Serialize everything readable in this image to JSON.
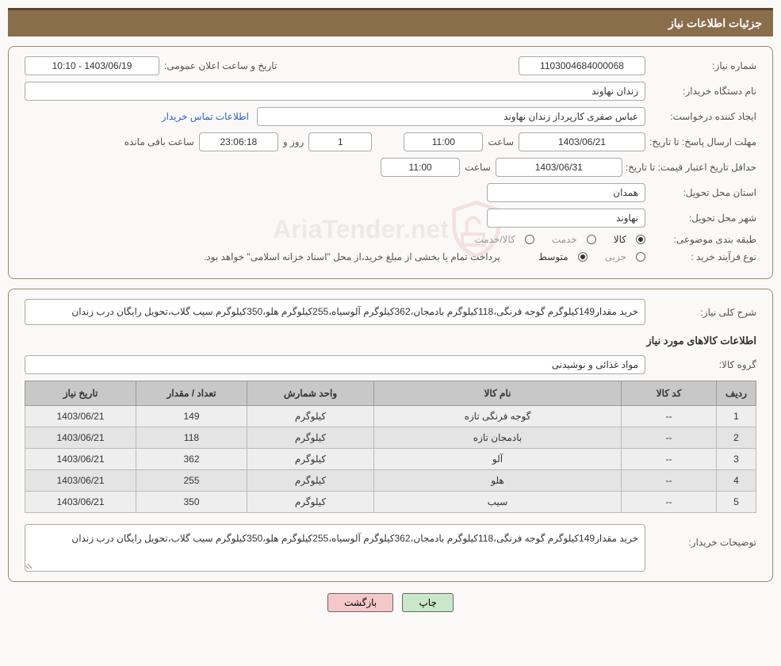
{
  "header": {
    "title": "جزئیات اطلاعات نیاز"
  },
  "fields": {
    "need_number_label": "شماره نیاز:",
    "need_number": "1103004684000068",
    "buyer_org_label": "نام دستگاه خریدار:",
    "buyer_org": "زندان نهاوند",
    "requester_label": "ایجاد کننده درخواست:",
    "requester": "عباس صفری کارپرداز زندان نهاوند",
    "contact_link": "اطلاعات تماس خریدار",
    "announce_label": "تاریخ و ساعت اعلان عمومی:",
    "announce_value": "1403/06/19 - 10:10",
    "deadline_label": "مهلت ارسال پاسخ: تا تاریخ:",
    "deadline_date": "1403/06/21",
    "time_label": "ساعت",
    "deadline_time": "11:00",
    "days_label": "روز و",
    "days_value": "1",
    "remain_time": "23:06:18",
    "remain_label": "ساعت باقی مانده",
    "validity_label": "حداقل تاریخ اعتبار قیمت: تا تاریخ:",
    "validity_date": "1403/06/31",
    "validity_time": "11:00",
    "province_label": "استان محل تحویل:",
    "province": "همدان",
    "city_label": "شهر محل تحویل:",
    "city": "نهاوند",
    "category_label": "طبقه بندی موضوعی:",
    "cat_goods": "کالا",
    "cat_service": "خدمت",
    "cat_both": "کالا/خدمت",
    "purchase_type_label": "نوع فرآیند خرید :",
    "pt_minor": "جزیی",
    "pt_medium": "متوسط",
    "payment_note": "پرداخت تمام یا بخشی از مبلغ خرید،از محل \"اسناد خزانه اسلامی\" خواهد بود."
  },
  "overview": {
    "desc_label": "شرح کلی نیاز:",
    "desc": "خرید مقدار149کیلوگرم گوجه فرنگی،118کیلوگرم بادمجان،362کیلوگرم آلوسیاه،255کیلوگرم هلو،350کیلوگرم سیب گلاب،تحویل رایگان درب زندان",
    "items_title": "اطلاعات کالاهای مورد نیاز",
    "group_label": "گروه کالا:",
    "group": "مواد غذائی و نوشیدنی"
  },
  "table": {
    "headers": {
      "idx": "ردیف",
      "code": "کد کالا",
      "name": "نام کالا",
      "unit": "واحد شمارش",
      "qty": "تعداد / مقدار",
      "date": "تاریخ نیاز"
    },
    "rows": [
      {
        "idx": "1",
        "code": "--",
        "name": "گوجه فرنگی تازه",
        "unit": "کیلوگرم",
        "qty": "149",
        "date": "1403/06/21"
      },
      {
        "idx": "2",
        "code": "--",
        "name": "بادمجان تازه",
        "unit": "کیلوگرم",
        "qty": "118",
        "date": "1403/06/21"
      },
      {
        "idx": "3",
        "code": "--",
        "name": "آلو",
        "unit": "کیلوگرم",
        "qty": "362",
        "date": "1403/06/21"
      },
      {
        "idx": "4",
        "code": "--",
        "name": "هلو",
        "unit": "کیلوگرم",
        "qty": "255",
        "date": "1403/06/21"
      },
      {
        "idx": "5",
        "code": "--",
        "name": "سیب",
        "unit": "کیلوگرم",
        "qty": "350",
        "date": "1403/06/21"
      }
    ]
  },
  "notes": {
    "label": "توضیحات خریدار:",
    "text": "خرید مقدار149کیلوگرم گوجه فرنگی،118کیلوگرم بادمجان،362کیلوگرم آلوسیاه،255کیلوگرم هلو،350کیلوگرم سیب گلاب،تحویل رایگان درب زندان"
  },
  "buttons": {
    "print": "چاپ",
    "back": "بازگشت"
  },
  "watermark": {
    "text": "AriaTender.net"
  },
  "colors": {
    "header_bg": "#8a6d4b",
    "panel_border": "#9b8a6f",
    "table_header_bg": "#c8c8c8",
    "table_row_bg": "#eeeeee",
    "btn_print_bg": "#c8e8c8",
    "btn_back_bg": "#f4c8c8",
    "link": "#3060d0"
  }
}
